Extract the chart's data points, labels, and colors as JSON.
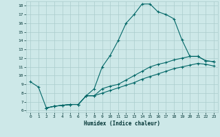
{
  "xlabel": "Humidex (Indice chaleur)",
  "bg_color": "#cde8e8",
  "grid_color": "#aacccc",
  "line_color": "#006666",
  "xlim": [
    -0.5,
    23.5
  ],
  "ylim": [
    5.8,
    18.5
  ],
  "xticks": [
    0,
    1,
    2,
    3,
    4,
    5,
    6,
    7,
    8,
    9,
    10,
    11,
    12,
    13,
    14,
    15,
    16,
    17,
    18,
    19,
    20,
    21,
    22,
    23
  ],
  "yticks": [
    6,
    7,
    8,
    9,
    10,
    11,
    12,
    13,
    14,
    15,
    16,
    17,
    18
  ],
  "line1_x": [
    0,
    1,
    2,
    3,
    4,
    5,
    6,
    7,
    8,
    9,
    10,
    11,
    12,
    13,
    14,
    15,
    16,
    17,
    18,
    19,
    20,
    21,
    22,
    23
  ],
  "line1_y": [
    9.3,
    8.7,
    6.3,
    6.5,
    6.6,
    6.7,
    6.7,
    7.7,
    8.5,
    11.0,
    12.3,
    14.0,
    16.0,
    17.0,
    18.2,
    18.2,
    17.3,
    17.0,
    16.5,
    14.1,
    12.2,
    12.2,
    11.7,
    11.6
  ],
  "line2_x": [
    2,
    3,
    4,
    5,
    6,
    7,
    8,
    9,
    10,
    11,
    12,
    13,
    14,
    15,
    16,
    17,
    18,
    19,
    20,
    21,
    22,
    23
  ],
  "line2_y": [
    6.3,
    6.5,
    6.6,
    6.7,
    6.7,
    7.7,
    7.7,
    8.5,
    8.8,
    9.0,
    9.5,
    10.0,
    10.5,
    11.0,
    11.3,
    11.5,
    11.8,
    12.0,
    12.2,
    12.2,
    11.7,
    11.6
  ],
  "line3_x": [
    2,
    3,
    4,
    5,
    6,
    7,
    8,
    9,
    10,
    11,
    12,
    13,
    14,
    15,
    16,
    17,
    18,
    19,
    20,
    21,
    22,
    23
  ],
  "line3_y": [
    6.3,
    6.5,
    6.6,
    6.7,
    6.7,
    7.7,
    7.7,
    8.0,
    8.3,
    8.6,
    8.9,
    9.2,
    9.6,
    9.9,
    10.2,
    10.5,
    10.8,
    11.0,
    11.2,
    11.4,
    11.3,
    11.1
  ]
}
